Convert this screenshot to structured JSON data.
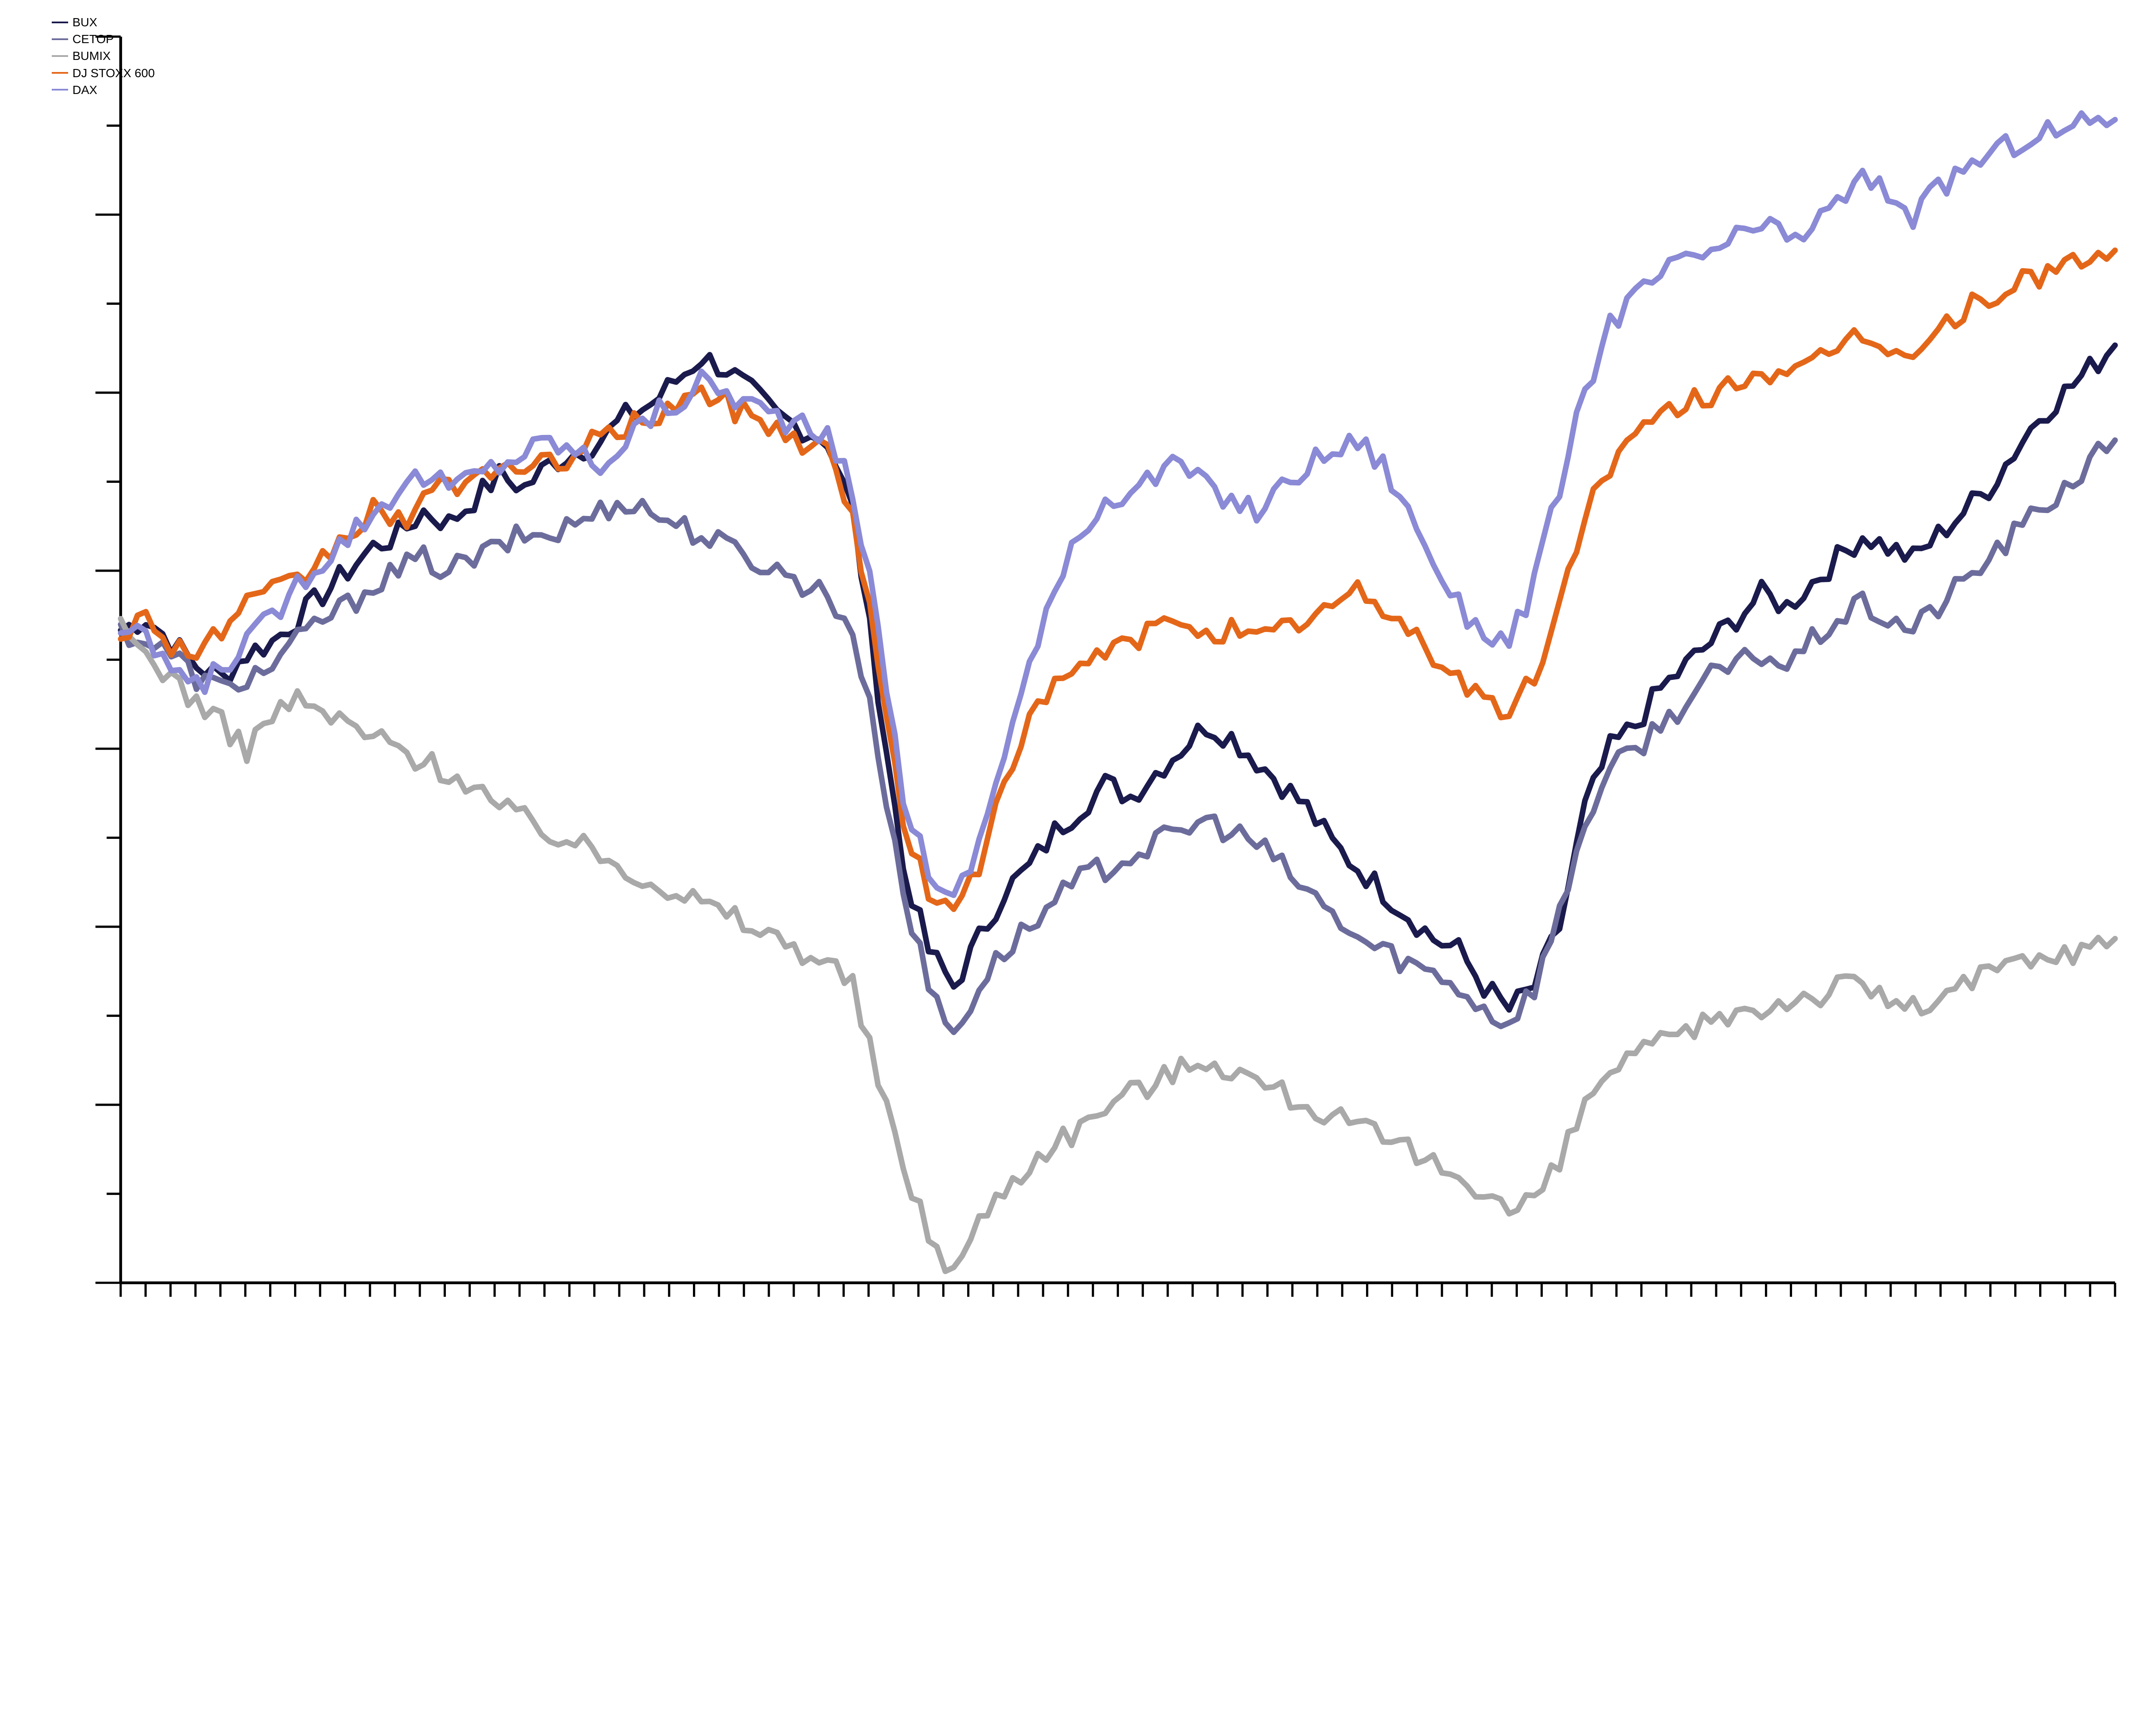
{
  "chart": {
    "type": "line",
    "background_color": "#ffffff",
    "plot_border_color": "#000000",
    "axis_color": "#000000",
    "tick_color": "#000000",
    "line_width": 4,
    "axis_line_width": 2,
    "tick_line_width": 1.6,
    "major_tick_len": 18,
    "minor_tick_len": 10,
    "x_points": 80,
    "x_minor_ticks": 80,
    "y_major_ticks": 7,
    "y_minor_per_major": 1,
    "ylim": [
      45,
      150
    ],
    "xlim": [
      0,
      79
    ],
    "legend": {
      "position": "top-left",
      "fontsize": 28,
      "text_color": "#000000",
      "swatch_width": 38,
      "swatch_height": 4,
      "items": [
        {
          "label": "BUX",
          "color": "#1a1a4d"
        },
        {
          "label": "CETOP",
          "color": "#6c6c9c"
        },
        {
          "label": "BUMIX",
          "color": "#a9a9a9"
        },
        {
          "label": "DJ STOXX 600",
          "color": "#e46719"
        },
        {
          "label": "DAX",
          "color": "#8a8ad6"
        }
      ]
    },
    "series": [
      {
        "name": "BUX",
        "color": "#1a1a4d",
        "values": [
          100,
          101,
          99,
          97,
          96,
          98,
          99,
          101,
          103,
          105,
          107,
          108,
          110,
          109,
          111,
          113,
          112,
          114,
          115,
          116,
          118,
          119,
          121,
          123,
          122,
          120,
          118,
          117,
          116,
          110,
          95,
          80,
          73,
          70,
          74,
          78,
          80,
          83,
          85,
          87,
          86,
          88,
          90,
          92,
          91,
          89,
          87,
          85,
          82,
          80,
          78,
          76,
          74,
          73,
          70,
          68,
          70,
          75,
          85,
          90,
          92,
          95,
          97,
          99,
          101,
          103,
          102,
          104,
          106,
          108,
          107,
          106,
          108,
          110,
          112,
          115,
          118,
          120,
          122,
          124
        ]
      },
      {
        "name": "CETOP",
        "color": "#6c6c9c",
        "values": [
          100,
          99,
          98,
          96,
          95,
          96,
          97,
          99,
          101,
          102,
          104,
          105,
          106,
          105,
          106,
          107,
          108,
          108,
          109,
          110,
          111,
          110,
          109,
          108,
          107,
          106,
          105,
          104,
          103,
          100,
          90,
          78,
          70,
          66,
          70,
          73,
          75,
          77,
          79,
          80,
          81,
          82,
          83,
          84,
          83,
          82,
          80,
          78,
          76,
          74,
          73,
          72,
          71,
          70,
          68,
          67,
          70,
          76,
          84,
          88,
          90,
          92,
          94,
          96,
          97,
          98,
          97,
          99,
          101,
          102,
          101,
          100,
          102,
          104,
          106,
          108,
          110,
          112,
          114,
          116
        ]
      },
      {
        "name": "BUMIX",
        "color": "#a9a9a9",
        "values": [
          100,
          98,
          96,
          94,
          92,
          90,
          93,
          94,
          93,
          92,
          91,
          90,
          89,
          88,
          87,
          85,
          84,
          83,
          82,
          81,
          80,
          79,
          78,
          77,
          76,
          75,
          74,
          73,
          72,
          70,
          62,
          55,
          49,
          46,
          50,
          53,
          55,
          57,
          58,
          60,
          61,
          62,
          63,
          64,
          63,
          62,
          61,
          60,
          59,
          58,
          57,
          56,
          55,
          54,
          53,
          51,
          52,
          55,
          60,
          63,
          64,
          65,
          66,
          67,
          68,
          68,
          69,
          69,
          70,
          70,
          69,
          68,
          69,
          70,
          71,
          72,
          72,
          73,
          73,
          74
        ]
      },
      {
        "name": "DJ STOXX 600",
        "color": "#e46719",
        "values": [
          100,
          101,
          99,
          98,
          100,
          102,
          103,
          104,
          106,
          108,
          110,
          109,
          111,
          112,
          113,
          114,
          113,
          114,
          115,
          116,
          117,
          118,
          119,
          120,
          119,
          118,
          117,
          116,
          115,
          110,
          97,
          84,
          78,
          76,
          80,
          88,
          92,
          95,
          97,
          98,
          99,
          100,
          101,
          100,
          100,
          99,
          100,
          101,
          102,
          103,
          102,
          100,
          98,
          96,
          94,
          93,
          96,
          102,
          110,
          114,
          116,
          118,
          119,
          120,
          121,
          122,
          121,
          122,
          124,
          125,
          124,
          123,
          125,
          127,
          128,
          129,
          130,
          131,
          131,
          132
        ]
      },
      {
        "name": "DAX",
        "color": "#8a8ad6",
        "values": [
          100,
          99,
          97,
          95,
          97,
          99,
          101,
          104,
          106,
          108,
          110,
          112,
          113,
          112,
          113,
          114,
          115,
          116,
          115,
          114,
          116,
          118,
          119,
          121,
          120,
          119,
          118,
          117,
          116,
          112,
          100,
          86,
          80,
          77,
          82,
          90,
          97,
          103,
          108,
          111,
          112,
          113,
          114,
          112,
          111,
          110,
          112,
          114,
          115,
          116,
          114,
          110,
          106,
          102,
          100,
          99,
          104,
          112,
          120,
          126,
          128,
          130,
          131,
          132,
          133,
          134,
          133,
          134,
          136,
          138,
          137,
          135,
          137,
          139,
          140,
          141,
          142,
          142,
          143,
          143
        ]
      }
    ]
  }
}
